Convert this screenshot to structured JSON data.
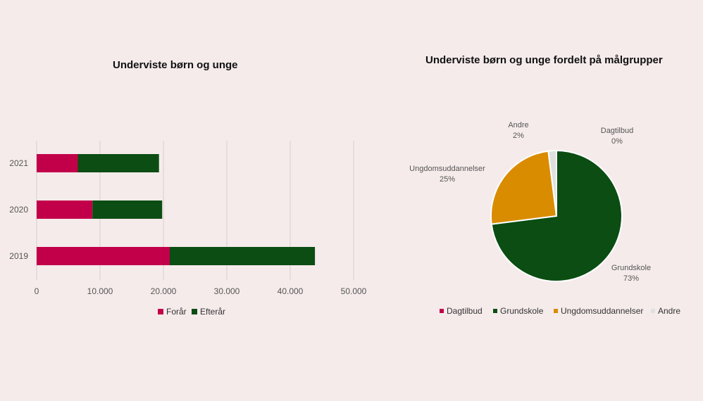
{
  "chart_data": [
    {
      "type": "bar",
      "orientation": "horizontal",
      "stacked": true,
      "title": "Underviste børn og unge",
      "categories": [
        "2019",
        "2020",
        "2021"
      ],
      "series": [
        {
          "name": "Forår",
          "values": [
            21000,
            8800,
            6500
          ],
          "color": "#c2004a"
        },
        {
          "name": "Efterår",
          "values": [
            22900,
            11000,
            12800
          ],
          "color": "#0b4d12"
        }
      ],
      "xlim": [
        0,
        50000
      ],
      "xticks": [
        "0",
        "10.000",
        "20.000",
        "30.000",
        "40.000",
        "50.000"
      ],
      "grid": true,
      "legend": "bottom"
    },
    {
      "type": "pie",
      "title": "Underviste børn og unge fordelt på målgrupper",
      "slices": [
        {
          "name": "Dagtilbud",
          "value": 0,
          "label": "0%",
          "color": "#c2004a"
        },
        {
          "name": "Grundskole",
          "value": 73,
          "label": "73%",
          "color": "#0b4d12"
        },
        {
          "name": "Ungdomsuddannelser",
          "value": 25,
          "label": "25%",
          "color": "#d98c00"
        },
        {
          "name": "Andre",
          "value": 2,
          "label": "2%",
          "color": "#dfe0df"
        }
      ],
      "legend": "bottom"
    }
  ]
}
